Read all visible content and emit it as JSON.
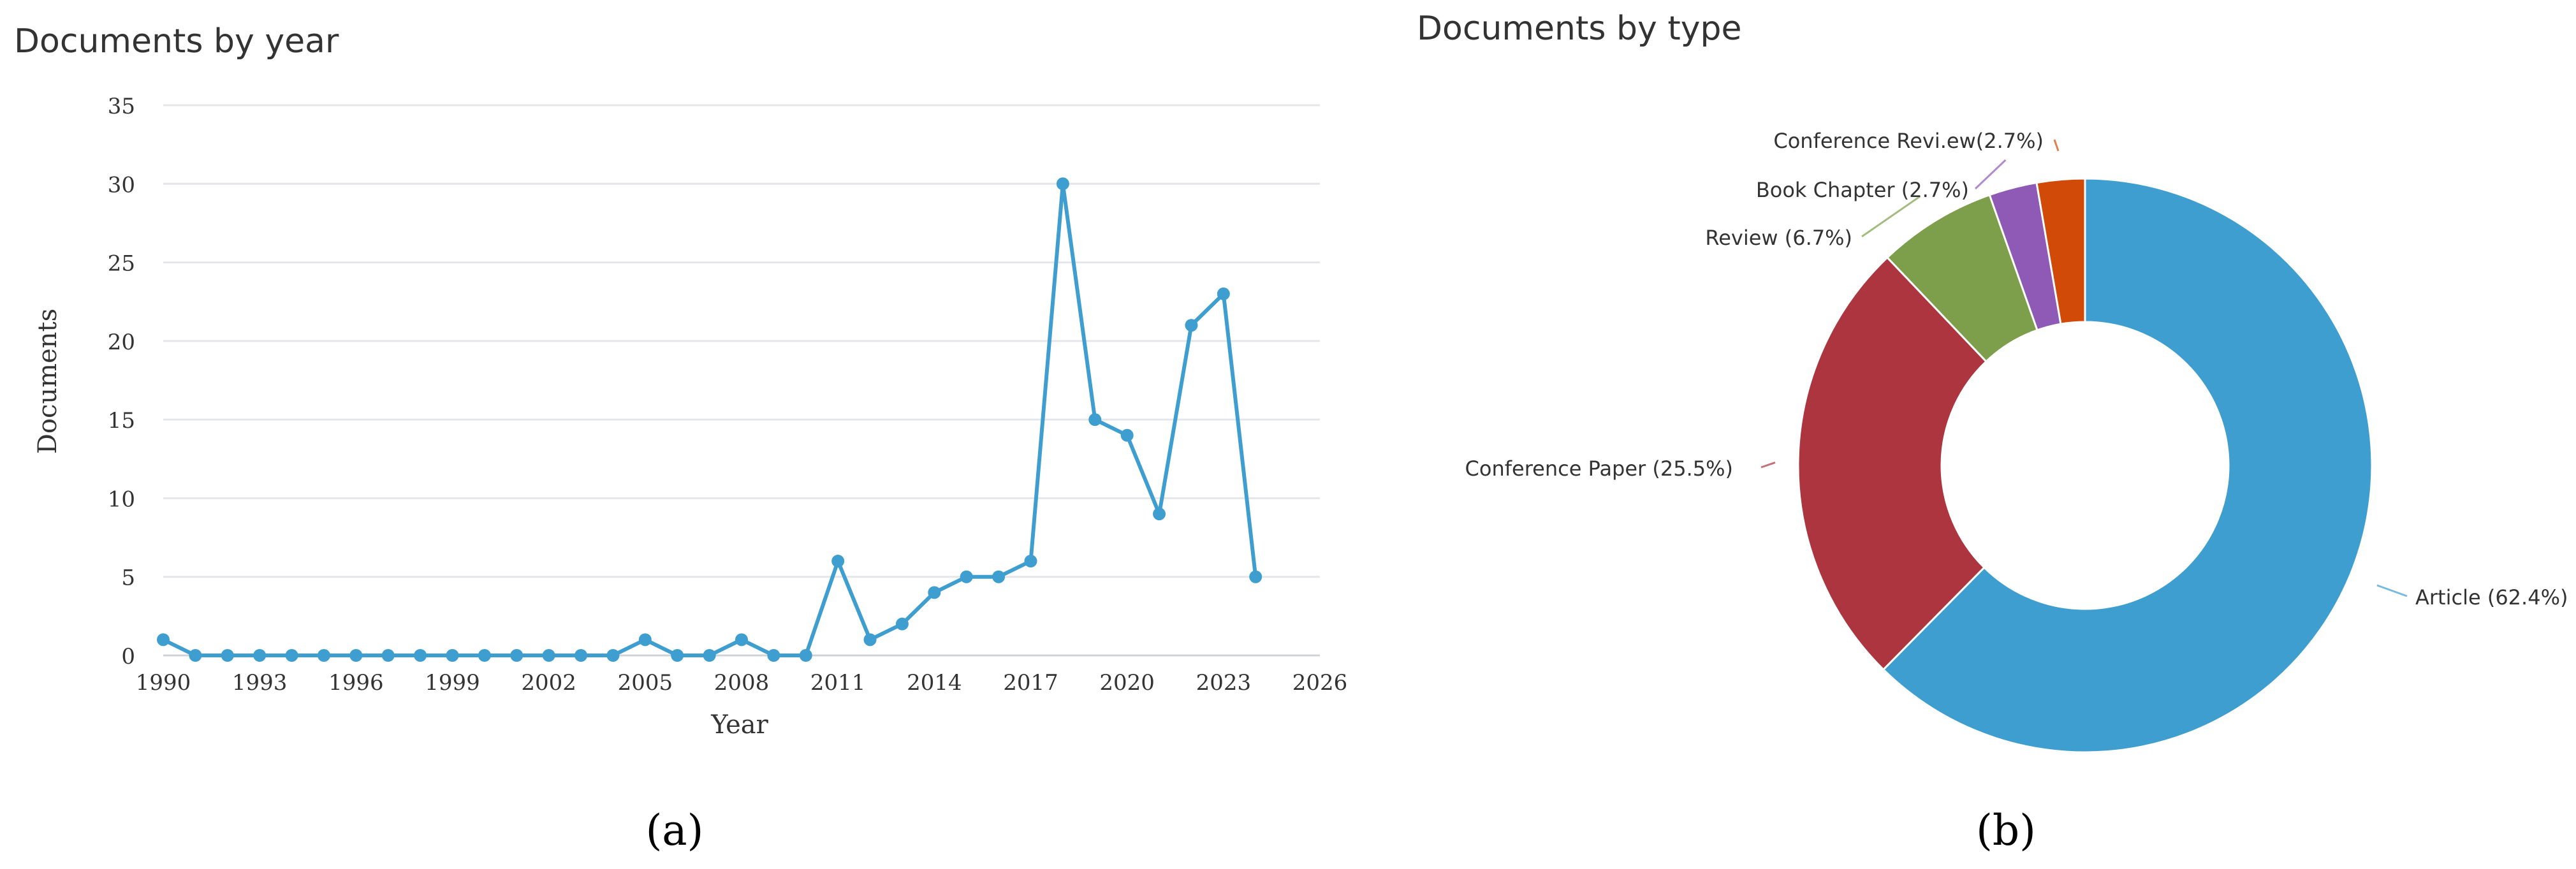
{
  "panels": {
    "a": {
      "caption": "(a)"
    },
    "b": {
      "caption": "(b)"
    }
  },
  "chart_data": [
    {
      "type": "line",
      "title": "Documents by year",
      "xlabel": "Year",
      "ylabel": "Documents",
      "xlim": [
        1990,
        2026
      ],
      "ylim": [
        0,
        35
      ],
      "x_ticks": [
        1990,
        1993,
        1996,
        1999,
        2002,
        2005,
        2008,
        2011,
        2014,
        2017,
        2020,
        2023,
        2026
      ],
      "y_ticks": [
        0,
        5,
        10,
        15,
        20,
        25,
        30,
        35
      ],
      "grid": true,
      "color": "#3f9ed0",
      "x": [
        1990,
        1991,
        1992,
        1993,
        1994,
        1995,
        1996,
        1997,
        1998,
        1999,
        2000,
        2001,
        2002,
        2003,
        2004,
        2005,
        2006,
        2007,
        2008,
        2009,
        2010,
        2011,
        2012,
        2013,
        2014,
        2015,
        2016,
        2017,
        2018,
        2019,
        2020,
        2021,
        2022,
        2023,
        2024
      ],
      "y": [
        1,
        0,
        0,
        0,
        0,
        0,
        0,
        0,
        0,
        0,
        0,
        0,
        0,
        0,
        0,
        1,
        0,
        0,
        1,
        0,
        0,
        6,
        1,
        2,
        4,
        5,
        5,
        6,
        30,
        15,
        14,
        9,
        21,
        23,
        5
      ]
    },
    {
      "type": "pie",
      "style": "donut",
      "title": "Documents by type",
      "slices": [
        {
          "label": "Article (62.4%)",
          "value": 62.4,
          "color": "#3f9ed0"
        },
        {
          "label": "Conference Paper  (25.5%)",
          "value": 25.5,
          "color": "#ad3540"
        },
        {
          "label": "Review (6.7%)",
          "value": 6.7,
          "color": "#7d9e4a"
        },
        {
          "label": "Book Chapter (2.7%)",
          "value": 2.7,
          "color": "#8f5ab5"
        },
        {
          "label": "Conference Revi.ew(2.7%)",
          "value": 2.7,
          "color": "#d24a08"
        }
      ]
    }
  ]
}
